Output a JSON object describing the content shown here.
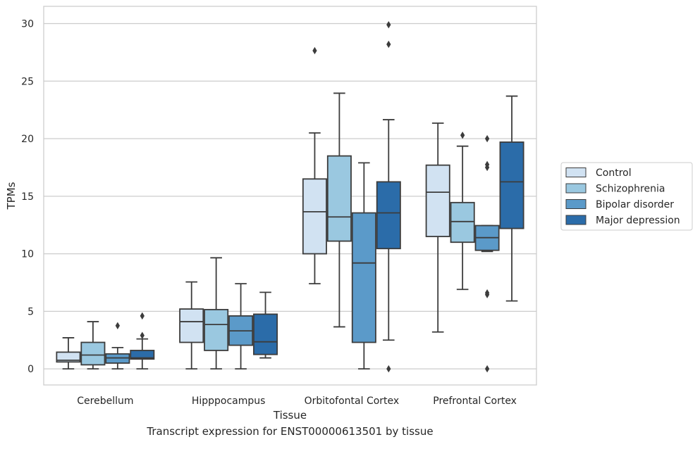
{
  "caption": "Transcript expression for ENST00000613501 by tissue",
  "chart_data": {
    "type": "box",
    "xlabel": "Tissue",
    "ylabel": "TPMs",
    "ylim": [
      -1.4,
      31.5
    ],
    "yticks": [
      0,
      5,
      10,
      15,
      20,
      25,
      30
    ],
    "grid": "horizontal",
    "legend_position": "right",
    "categories": [
      "Cerebellum",
      "Hipppocampus",
      "Orbitofontal Cortex",
      "Prefrontal Cortex"
    ],
    "series": [
      {
        "name": "Control",
        "color": "#d1e2f2",
        "boxes": [
          {
            "whisker_low": 0.0,
            "q1": 0.6,
            "median": 0.75,
            "q3": 1.45,
            "whisker_high": 2.7,
            "outliers": []
          },
          {
            "whisker_low": 0.0,
            "q1": 2.3,
            "median": 4.1,
            "q3": 5.2,
            "whisker_high": 7.55,
            "outliers": []
          },
          {
            "whisker_low": 7.4,
            "q1": 10.0,
            "median": 13.65,
            "q3": 16.5,
            "whisker_high": 20.5,
            "outliers": [
              27.65
            ]
          },
          {
            "whisker_low": 3.2,
            "q1": 11.5,
            "median": 15.35,
            "q3": 17.7,
            "whisker_high": 21.35,
            "outliers": []
          }
        ]
      },
      {
        "name": "Schizophrenia",
        "color": "#9ac8e0",
        "boxes": [
          {
            "whisker_low": 0.0,
            "q1": 0.35,
            "median": 1.2,
            "q3": 2.3,
            "whisker_high": 4.1,
            "outliers": []
          },
          {
            "whisker_low": 0.0,
            "q1": 1.6,
            "median": 3.85,
            "q3": 5.15,
            "whisker_high": 9.65,
            "outliers": []
          },
          {
            "whisker_low": 3.65,
            "q1": 11.1,
            "median": 13.2,
            "q3": 18.5,
            "whisker_high": 23.95,
            "outliers": []
          },
          {
            "whisker_low": 6.9,
            "q1": 11.0,
            "median": 12.8,
            "q3": 14.45,
            "whisker_high": 19.35,
            "outliers": [
              20.3
            ]
          }
        ]
      },
      {
        "name": "Bipolar disorder",
        "color": "#5b9ac9",
        "boxes": [
          {
            "whisker_low": 0.0,
            "q1": 0.5,
            "median": 0.95,
            "q3": 1.3,
            "whisker_high": 1.85,
            "outliers": [
              3.75
            ]
          },
          {
            "whisker_low": 0.0,
            "q1": 2.05,
            "median": 3.3,
            "q3": 4.6,
            "whisker_high": 7.4,
            "outliers": []
          },
          {
            "whisker_low": 0.0,
            "q1": 2.3,
            "median": 9.2,
            "q3": 13.55,
            "whisker_high": 17.9,
            "outliers": []
          },
          {
            "whisker_low": 10.2,
            "q1": 10.3,
            "median": 11.4,
            "q3": 12.45,
            "whisker_high": 12.45,
            "outliers": [
              0.0,
              6.45,
              6.6,
              17.5,
              17.75,
              20.0
            ]
          }
        ]
      },
      {
        "name": "Major depression",
        "color": "#2b6ca9",
        "boxes": [
          {
            "whisker_low": 0.0,
            "q1": 0.85,
            "median": 0.95,
            "q3": 1.6,
            "whisker_high": 2.6,
            "outliers": [
              2.9,
              4.6
            ]
          },
          {
            "whisker_low": 0.95,
            "q1": 1.25,
            "median": 2.35,
            "q3": 4.75,
            "whisker_high": 6.65,
            "outliers": []
          },
          {
            "whisker_low": 2.5,
            "q1": 10.45,
            "median": 13.55,
            "q3": 16.25,
            "whisker_high": 21.65,
            "outliers": [
              0.0,
              28.2,
              29.9
            ]
          },
          {
            "whisker_low": 5.9,
            "q1": 12.2,
            "median": 16.25,
            "q3": 19.7,
            "whisker_high": 23.7,
            "outliers": []
          }
        ]
      }
    ]
  },
  "colors": {
    "grid": "#cccccc",
    "frame": "#cccccc",
    "box_edge": "#3c3c3c",
    "text": "#262626"
  }
}
